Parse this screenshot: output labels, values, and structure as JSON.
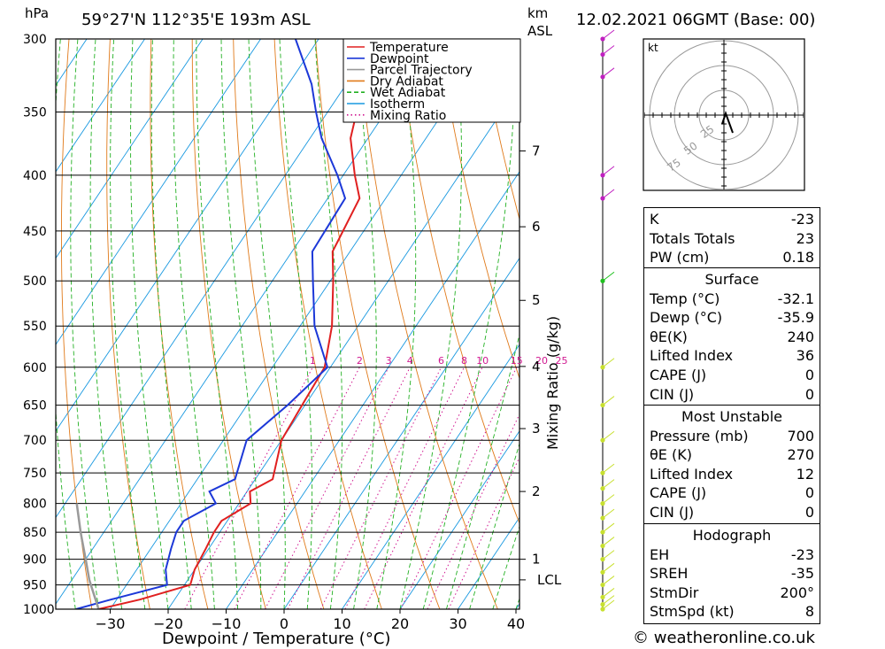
{
  "header": {
    "unit_hpa": "hPa",
    "location": "59°27'N  112°35'E  193m  ASL",
    "km_label": "km",
    "asl_label": "ASL",
    "datetime": "12.02.2021  06GMT  (Base: 00)"
  },
  "chart_data": {
    "type": "line",
    "subtype": "skew-T log-P diagram",
    "xlabel": "Dewpoint / Temperature (°C)",
    "ylabel_right": "Mixing Ratio (g/kg)",
    "xlim": [
      -40,
      40
    ],
    "ylim_hpa": [
      1000,
      300
    ],
    "pressure_ticks": [
      300,
      350,
      400,
      450,
      500,
      550,
      600,
      650,
      700,
      750,
      800,
      850,
      900,
      950,
      1000
    ],
    "temp_ticks": [
      -30,
      -20,
      -10,
      0,
      10,
      20,
      30,
      40
    ],
    "height_km_ticks": [
      {
        "label": "7",
        "p": 380
      },
      {
        "label": "6",
        "p": 446
      },
      {
        "label": "5",
        "p": 521
      },
      {
        "label": "4",
        "p": 599
      },
      {
        "label": "3",
        "p": 683
      },
      {
        "label": "2",
        "p": 780
      },
      {
        "label": "1",
        "p": 900
      }
    ],
    "lcl": {
      "label": "LCL",
      "p": 940
    },
    "mixing_ratio_labels": [
      "1",
      "2",
      "3",
      "4",
      "6",
      "8",
      "10",
      "15",
      "20",
      "25"
    ],
    "legend": {
      "placement": "top-right",
      "entries": [
        {
          "name": "Temperature",
          "color": "#e02020"
        },
        {
          "name": "Dewpoint",
          "color": "#1c38d8"
        },
        {
          "name": "Parcel Trajectory",
          "color": "#9a9a9a"
        },
        {
          "name": "Dry Adiabat",
          "color": "#e07a1a"
        },
        {
          "name": "Wet Adiabat",
          "color": "#22b022"
        },
        {
          "name": "Isotherm",
          "color": "#1898e0"
        },
        {
          "name": "Mixing Ratio",
          "color": "#d01890"
        }
      ]
    },
    "series": [
      {
        "name": "Temperature",
        "color": "#e02020",
        "points": [
          {
            "p": 1000,
            "t": -32
          },
          {
            "p": 980,
            "t": -26
          },
          {
            "p": 950,
            "t": -19
          },
          {
            "p": 920,
            "t": -20
          },
          {
            "p": 880,
            "t": -20.5
          },
          {
            "p": 850,
            "t": -21
          },
          {
            "p": 830,
            "t": -21
          },
          {
            "p": 800,
            "t": -18
          },
          {
            "p": 780,
            "t": -19.5
          },
          {
            "p": 760,
            "t": -17
          },
          {
            "p": 700,
            "t": -20
          },
          {
            "p": 650,
            "t": -20.5
          },
          {
            "p": 600,
            "t": -21
          },
          {
            "p": 550,
            "t": -24.5
          },
          {
            "p": 500,
            "t": -29.5
          },
          {
            "p": 470,
            "t": -33
          },
          {
            "p": 420,
            "t": -34.5
          },
          {
            "p": 400,
            "t": -38
          },
          {
            "p": 370,
            "t": -43
          },
          {
            "p": 350,
            "t": -45
          },
          {
            "p": 330,
            "t": -48
          },
          {
            "p": 300,
            "t": -55
          }
        ]
      },
      {
        "name": "Dewpoint",
        "color": "#1c38d8",
        "points": [
          {
            "p": 1000,
            "t": -35.9
          },
          {
            "p": 980,
            "t": -31
          },
          {
            "p": 950,
            "t": -23
          },
          {
            "p": 920,
            "t": -25
          },
          {
            "p": 880,
            "t": -26.5
          },
          {
            "p": 850,
            "t": -27.5
          },
          {
            "p": 830,
            "t": -27.5
          },
          {
            "p": 800,
            "t": -24
          },
          {
            "p": 780,
            "t": -26.5
          },
          {
            "p": 760,
            "t": -23.5
          },
          {
            "p": 700,
            "t": -26
          },
          {
            "p": 650,
            "t": -23
          },
          {
            "p": 600,
            "t": -20.5
          },
          {
            "p": 550,
            "t": -27.5
          },
          {
            "p": 500,
            "t": -33
          },
          {
            "p": 470,
            "t": -36.5
          },
          {
            "p": 420,
            "t": -37
          },
          {
            "p": 400,
            "t": -41
          },
          {
            "p": 370,
            "t": -48
          },
          {
            "p": 350,
            "t": -52
          },
          {
            "p": 330,
            "t": -56
          },
          {
            "p": 300,
            "t": -64
          }
        ]
      },
      {
        "name": "Parcel Trajectory",
        "color": "#9a9a9a",
        "points": [
          {
            "p": 1000,
            "t": -32
          },
          {
            "p": 940,
            "t": -37
          },
          {
            "p": 900,
            "t": -40
          },
          {
            "p": 850,
            "t": -44
          },
          {
            "p": 800,
            "t": -48
          }
        ]
      }
    ],
    "wind_levels_hpa": [
      1000,
      990,
      975,
      950,
      925,
      900,
      875,
      850,
      825,
      800,
      775,
      750,
      700,
      650,
      600,
      500,
      420,
      400,
      325,
      310,
      300
    ]
  },
  "hodograph": {
    "unit": "kt",
    "rings": [
      "25",
      "50",
      "75"
    ]
  },
  "indices": {
    "top": [
      {
        "label": "K",
        "value": "-23"
      },
      {
        "label": "Totals Totals",
        "value": "23"
      },
      {
        "label": "PW (cm)",
        "value": "0.18"
      }
    ],
    "surface": {
      "title": "Surface",
      "rows": [
        {
          "label": "Temp (°C)",
          "value": "-32.1"
        },
        {
          "label": "Dewp (°C)",
          "value": "-35.9"
        },
        {
          "label": "θE(K)",
          "value": "240"
        },
        {
          "label": "Lifted Index",
          "value": "36"
        },
        {
          "label": "CAPE (J)",
          "value": "0"
        },
        {
          "label": "CIN (J)",
          "value": "0"
        }
      ]
    },
    "most_unstable": {
      "title": "Most Unstable",
      "rows": [
        {
          "label": "Pressure (mb)",
          "value": "700"
        },
        {
          "label": "θE (K)",
          "value": "270"
        },
        {
          "label": "Lifted Index",
          "value": "12"
        },
        {
          "label": "CAPE (J)",
          "value": "0"
        },
        {
          "label": "CIN (J)",
          "value": "0"
        }
      ]
    },
    "hodograph": {
      "title": "Hodograph",
      "rows": [
        {
          "label": "EH",
          "value": "-23"
        },
        {
          "label": "SREH",
          "value": "-35"
        },
        {
          "label": "StmDir",
          "value": "200°"
        },
        {
          "label": "StmSpd (kt)",
          "value": "8"
        }
      ]
    }
  },
  "footer": {
    "credit": "© weatheronline.co.uk"
  }
}
